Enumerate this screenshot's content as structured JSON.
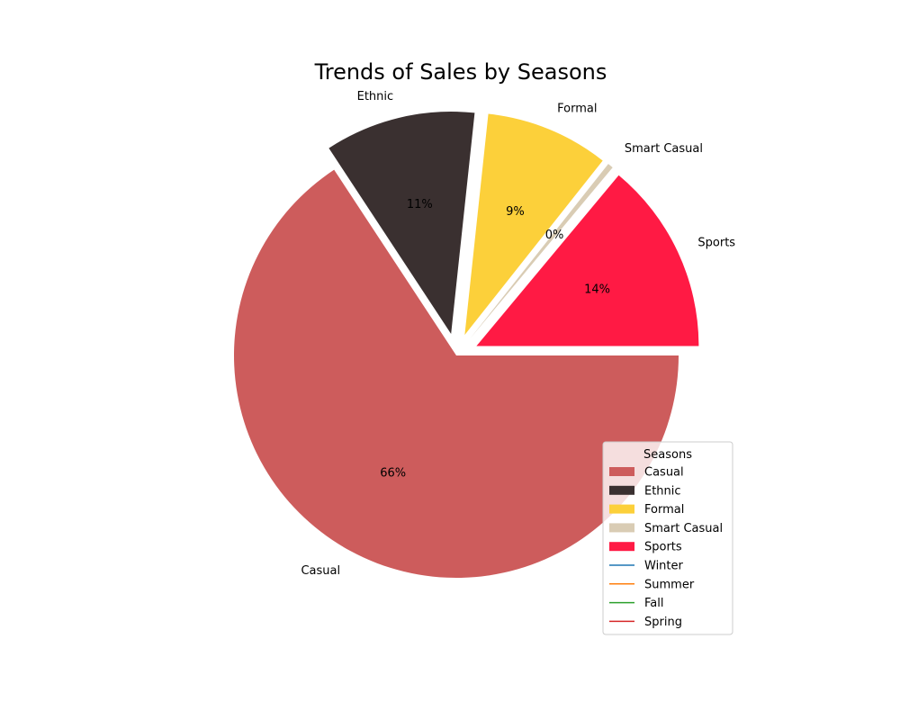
{
  "chart_data": {
    "type": "pie",
    "title": "Trends of Sales by Seasons",
    "slices": [
      {
        "label": "Casual",
        "value": 66,
        "pct_label": "66%",
        "color": "#cd5c5c",
        "explode": 0
      },
      {
        "label": "Ethnic",
        "value": 11,
        "pct_label": "11%",
        "color": "#3a3030",
        "explode": 0.1
      },
      {
        "label": "Formal",
        "value": 9,
        "pct_label": "9%",
        "color": "#fcd03a",
        "explode": 0.1
      },
      {
        "label": "Smart Casual",
        "value": 0.4,
        "pct_label": "0%",
        "color": "#d9ccb4",
        "explode": 0.1
      },
      {
        "label": "Sports",
        "value": 14,
        "pct_label": "14%",
        "color": "#ff1a44",
        "explode": 0.1
      }
    ],
    "start_angle": 0,
    "legend": {
      "title": "Seasons",
      "placement": "lower-right",
      "patch_entries": [
        "Casual",
        "Ethnic",
        "Formal",
        "Smart Casual",
        "Sports"
      ],
      "line_entries": [
        {
          "label": "Winter",
          "color": "#1f77b4"
        },
        {
          "label": "Summer",
          "color": "#ff7f0e"
        },
        {
          "label": "Fall",
          "color": "#2ca02c"
        },
        {
          "label": "Spring",
          "color": "#d62728"
        }
      ]
    }
  }
}
